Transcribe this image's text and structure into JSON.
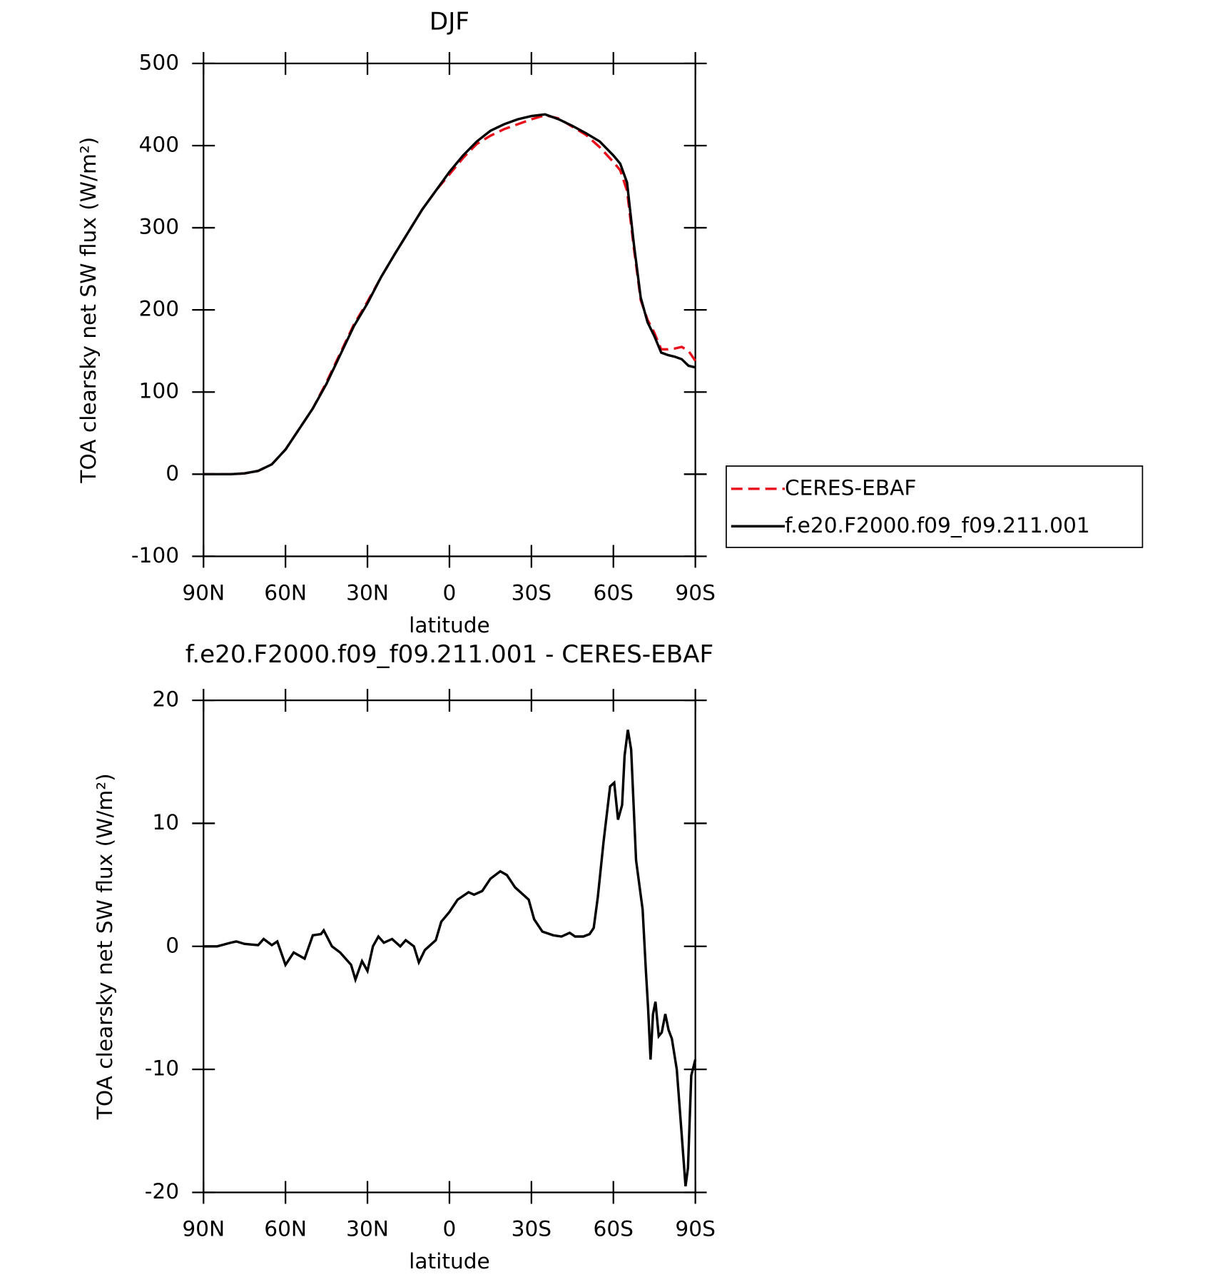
{
  "chart_data": [
    {
      "type": "line",
      "title": "DJF",
      "xlabel": "latitude",
      "ylabel": "TOA clearsky net SW flux (W/m²)",
      "xlim": [
        90,
        -90
      ],
      "ylim": [
        -100,
        500
      ],
      "xticks": [
        {
          "value": 90,
          "label": "90N"
        },
        {
          "value": 60,
          "label": "60N"
        },
        {
          "value": 30,
          "label": "30N"
        },
        0,
        {
          "value": -30,
          "label": "30S"
        },
        {
          "value": -60,
          "label": "60S"
        },
        {
          "value": -90,
          "label": "90S"
        }
      ],
      "yticks": [
        -100,
        0,
        100,
        200,
        300,
        400,
        500
      ],
      "legend": "right",
      "x": [
        90,
        85,
        80,
        75,
        70,
        65,
        60,
        55,
        50,
        45,
        40,
        35,
        30,
        25,
        20,
        15,
        10,
        5,
        0,
        -5,
        -10,
        -15,
        -20,
        -25,
        -30,
        -35,
        -40,
        -45,
        -50,
        -55,
        -60,
        -62.5,
        -65,
        -67.5,
        -70,
        -72.5,
        -75,
        -77.5,
        -80,
        -82.5,
        -85,
        -87.5,
        -90
      ],
      "series": [
        {
          "name": "CERES-EBAF",
          "color": "#e8101a",
          "dash": true,
          "values": [
            0,
            0,
            0,
            1,
            4,
            12,
            30,
            55,
            80,
            112,
            147,
            182,
            210,
            240,
            268,
            295,
            322,
            345,
            365,
            385,
            402,
            412,
            420,
            426,
            432,
            437,
            433,
            423,
            413,
            398,
            380,
            370,
            345,
            275,
            212,
            188,
            172,
            152,
            152,
            153,
            155,
            150,
            138
          ]
        },
        {
          "name": "f.e20.F2000.f09_f09.211.001",
          "color": "#000000",
          "dash": false,
          "values": [
            0,
            0,
            0,
            1,
            4,
            12,
            30,
            55,
            80,
            110,
            145,
            180,
            208,
            240,
            268,
            295,
            322,
            345,
            368,
            388,
            405,
            418,
            426,
            432,
            436,
            438,
            432,
            424,
            415,
            405,
            388,
            378,
            355,
            280,
            215,
            185,
            168,
            148,
            145,
            143,
            140,
            132,
            130
          ]
        }
      ]
    },
    {
      "type": "line",
      "title": "f.e20.F2000.f09_f09.211.001 - CERES-EBAF",
      "xlabel": "latitude",
      "ylabel": "TOA clearsky net SW flux (W/m²)",
      "xlim": [
        90,
        -90
      ],
      "ylim": [
        -20,
        20
      ],
      "xticks": [
        {
          "value": 90,
          "label": "90N"
        },
        {
          "value": 60,
          "label": "60N"
        },
        {
          "value": 30,
          "label": "30N"
        },
        0,
        {
          "value": -30,
          "label": "30S"
        },
        {
          "value": -60,
          "label": "60S"
        },
        {
          "value": -90,
          "label": "90S"
        }
      ],
      "yticks": [
        -20,
        -10,
        0,
        10,
        20
      ],
      "x": [
        90,
        85,
        80,
        78,
        75,
        70,
        68,
        65,
        63,
        60,
        57,
        53,
        50,
        47,
        46,
        43,
        40,
        36,
        34.4,
        32,
        30,
        28,
        26,
        24,
        21,
        18,
        16,
        13,
        11.2,
        9,
        5,
        3,
        0,
        -3,
        -7,
        -9,
        -12,
        -15,
        -18.6,
        -21,
        -24,
        -29,
        -31,
        -34,
        -38,
        -41,
        -44,
        -46,
        -49,
        -51.3,
        -52.8,
        -54.3,
        -56.4,
        -58.8,
        -60.3,
        -61.7,
        -63.2,
        -64.1,
        -65.3,
        -66.5,
        -68.3,
        -70.7,
        -71.9,
        -72.7,
        -73.6,
        -74.5,
        -75.4,
        -76.6,
        -77.7,
        -79,
        -80.2,
        -81.4,
        -83.2,
        -84.9,
        -86.4,
        -87.3,
        -88.5,
        -90
      ],
      "series": [
        {
          "color": "#000000",
          "values": [
            0,
            0,
            0.3,
            0.4,
            0.2,
            0.1,
            0.6,
            0.1,
            0.4,
            -1.5,
            -0.5,
            -1,
            0.9,
            1,
            1.3,
            0,
            -0.5,
            -1.5,
            -2.7,
            -1.2,
            -2,
            0,
            0.8,
            0.3,
            0.6,
            0,
            0.5,
            0,
            -1.3,
            -0.3,
            0.5,
            2,
            2.8,
            3.8,
            4.4,
            4.2,
            4.5,
            5.5,
            6.1,
            5.8,
            4.8,
            3.8,
            2.2,
            1.2,
            0.9,
            0.8,
            1.1,
            0.8,
            0.8,
            1,
            1.5,
            4,
            8.5,
            13,
            13.3,
            10.3,
            11.5,
            15.5,
            17.6,
            16,
            7,
            3,
            -2,
            -5,
            -9.2,
            -5.5,
            -4.5,
            -7.3,
            -7,
            -5.5,
            -6.8,
            -7.5,
            -10,
            -15,
            -19.5,
            -18,
            -10.5,
            -9.2
          ]
        }
      ]
    }
  ]
}
